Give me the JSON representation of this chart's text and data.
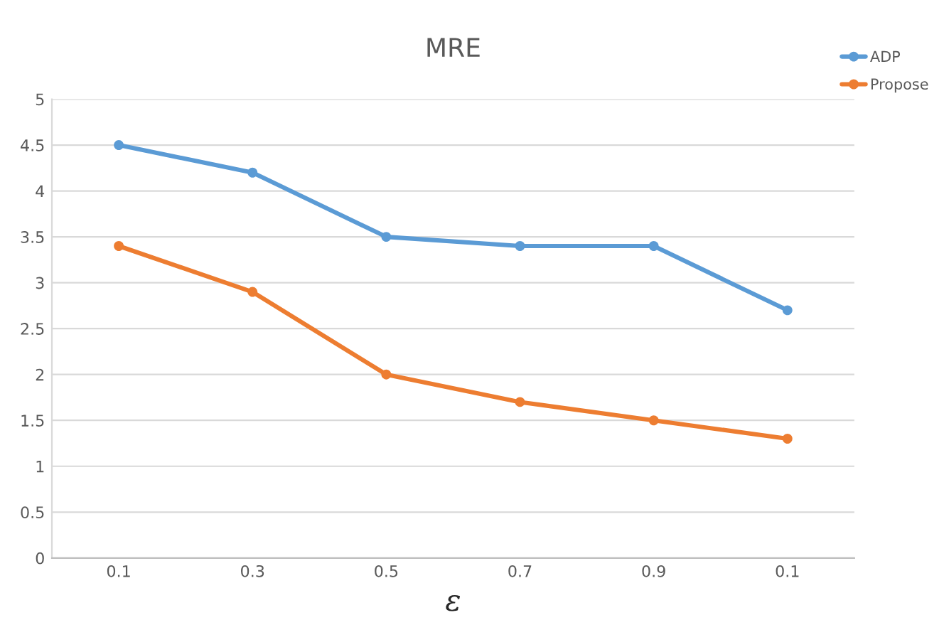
{
  "chart_data": {
    "type": "line",
    "title": "MRE",
    "xlabel": "ε",
    "categories": [
      "0.1",
      "0.3",
      "0.5",
      "0.7",
      "0.9",
      "0.1"
    ],
    "series": [
      {
        "name": "ADP",
        "color": "#5b9bd5",
        "values": [
          4.5,
          4.2,
          3.5,
          3.4,
          3.4,
          2.7
        ]
      },
      {
        "name": "Propose",
        "color": "#ed7d31",
        "values": [
          3.4,
          2.9,
          2.0,
          1.7,
          1.5,
          1.3
        ]
      }
    ],
    "ylim": [
      0,
      5
    ],
    "yticks": [
      0,
      0.5,
      1,
      1.5,
      2,
      2.5,
      3,
      3.5,
      4,
      4.5,
      5
    ],
    "grid": "y",
    "legend": "top right",
    "marker": "circle",
    "line_style": "solid"
  }
}
